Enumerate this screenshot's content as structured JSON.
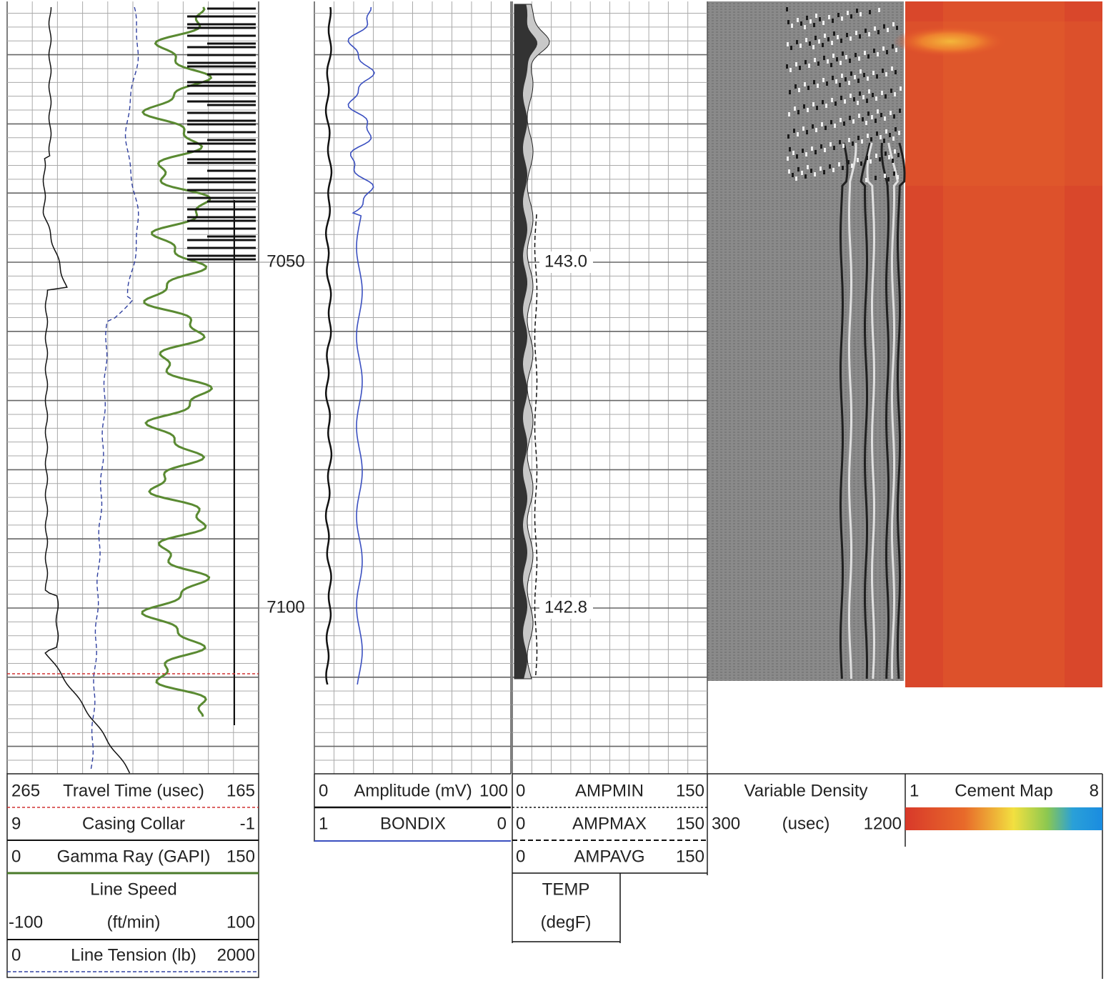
{
  "depth_labels": [
    "7050",
    "7100"
  ],
  "temp_labels": [
    "143.0",
    "142.8"
  ],
  "track1": {
    "rows": [
      {
        "left": "265",
        "name": "Travel Time (usec)",
        "right": "165"
      },
      {
        "left": "9",
        "name": "Casing Collar",
        "right": "-1"
      },
      {
        "left": "0",
        "name": "Gamma Ray (GAPI)",
        "right": "150"
      },
      {
        "name": "Line Speed"
      },
      {
        "left": "-100",
        "name": "(ft/min)",
        "right": "100"
      },
      {
        "left": "0",
        "name": "Line Tension (lb)",
        "right": "2000"
      }
    ]
  },
  "track2": {
    "rows": [
      {
        "left": "0",
        "name": "Amplitude (mV)",
        "right": "100"
      },
      {
        "left": "1",
        "name": "BONDIX",
        "right": "0"
      }
    ]
  },
  "track3": {
    "rows": [
      {
        "left": "0",
        "name": "AMPMIN",
        "right": "150"
      },
      {
        "left": "0",
        "name": "AMPMAX",
        "right": "150"
      },
      {
        "left": "0",
        "name": "AMPAVG",
        "right": "150"
      }
    ],
    "temp": [
      "TEMP",
      "(degF)"
    ]
  },
  "vdl": {
    "title": "Variable Density",
    "left": "300",
    "unit": "(usec)",
    "right": "1200"
  },
  "cement": {
    "left": "1",
    "title": "Cement Map",
    "right": "8"
  }
}
